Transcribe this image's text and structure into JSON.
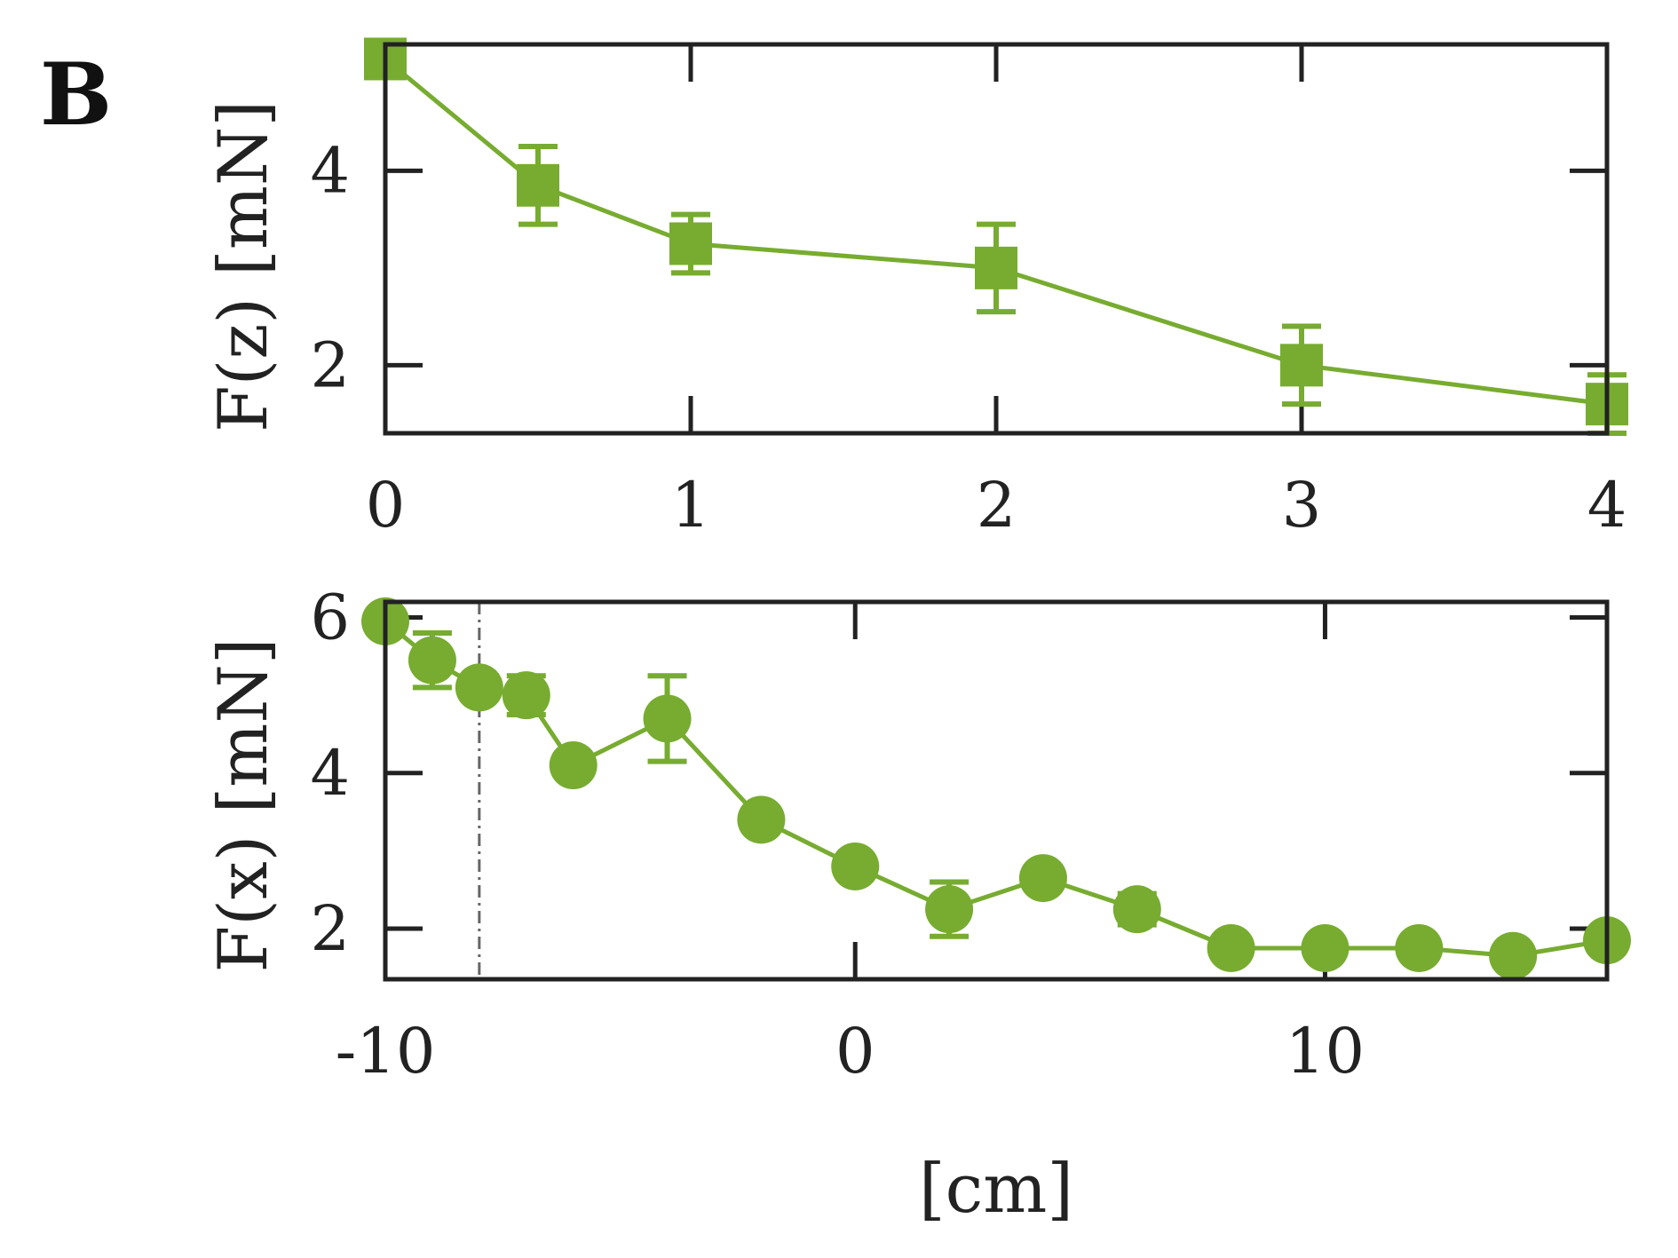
{
  "panel_label": "B",
  "colors": {
    "series": "#77ac30",
    "axis": "#222222",
    "vline": "#666666"
  },
  "chart_data": [
    {
      "type": "line",
      "marker": "square",
      "title": "",
      "xlabel": "",
      "ylabel": "F(z) [mN]",
      "xlim": [
        0,
        4
      ],
      "ylim": [
        1.3,
        5.3
      ],
      "xticks": [
        0,
        1,
        2,
        3,
        4
      ],
      "xtick_labels": [
        "0",
        "1",
        "2",
        "3",
        "4"
      ],
      "yticks": [
        2,
        4
      ],
      "ytick_labels": [
        "2",
        "4"
      ],
      "series": [
        {
          "name": "F(z)",
          "x": [
            0,
            0.5,
            1,
            2,
            3,
            4
          ],
          "y": [
            5.15,
            3.85,
            3.25,
            3.0,
            2.0,
            1.6
          ],
          "err": [
            0.0,
            0.4,
            0.3,
            0.45,
            0.4,
            0.3
          ]
        }
      ]
    },
    {
      "type": "line",
      "marker": "circle",
      "title": "",
      "xlabel": "[cm]",
      "ylabel": "F(x) [mN]",
      "xlim": [
        -10,
        16
      ],
      "ylim": [
        1.35,
        6.2
      ],
      "xticks": [
        -10,
        0,
        10
      ],
      "xtick_labels": [
        "-10",
        "0",
        "10"
      ],
      "yticks": [
        2,
        4,
        6
      ],
      "ytick_labels": [
        "2",
        "4",
        "6"
      ],
      "vline_x": -8,
      "series": [
        {
          "name": "F(x)",
          "x": [
            -10,
            -9,
            -8,
            -7,
            -6,
            -4,
            -2,
            0,
            2,
            4,
            6,
            8,
            10,
            12,
            14,
            16
          ],
          "y": [
            5.95,
            5.45,
            5.1,
            5.0,
            4.1,
            4.7,
            3.4,
            2.8,
            2.25,
            2.65,
            2.25,
            1.75,
            1.75,
            1.75,
            1.65,
            1.85
          ],
          "err": [
            0.1,
            0.35,
            0.15,
            0.25,
            0.1,
            0.55,
            0.1,
            0.1,
            0.35,
            0.15,
            0.2,
            0.1,
            0.1,
            0.1,
            0.1,
            0.15
          ]
        }
      ]
    }
  ]
}
